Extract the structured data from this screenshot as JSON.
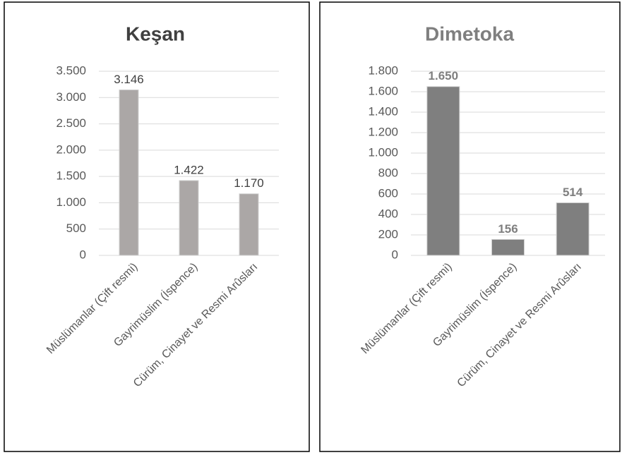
{
  "chart_data": [
    {
      "type": "bar",
      "title": "Keşan",
      "categories": [
        "Müslümanlar (Çift resmi)",
        "Gayrimüslim (İspence)",
        "Cürüm, Cinayet ve Resmi Arûsları"
      ],
      "values": [
        3146,
        1422,
        1170
      ],
      "value_labels": [
        "3.146",
        "1.422",
        "1.170"
      ],
      "color": "#aba7a6",
      "ylim": [
        0,
        3500
      ],
      "yticks": [
        0,
        500,
        {
          "value": 1000,
          "label": "1.000"
        },
        {
          "value": 1500,
          "label": "1.500"
        },
        {
          "value": 2000,
          "label": "2.000"
        },
        {
          "value": 2500,
          "label": "2.500"
        },
        {
          "value": 3000,
          "label": "3.000"
        },
        {
          "value": 3500,
          "label": "3.500"
        }
      ],
      "grid": true
    },
    {
      "type": "bar",
      "title": "Dimetoka",
      "categories": [
        "Müslümanlar (Çift resmi)",
        "Gayrimüslim (İspence)",
        "Cürüm, Cinayet ve Resmi Arûsları"
      ],
      "values": [
        1650,
        156,
        514
      ],
      "value_labels": [
        "1.650",
        "156",
        "514"
      ],
      "color": "#7f7f7f",
      "ylim": [
        0,
        1800
      ],
      "yticks": [
        0,
        200,
        400,
        600,
        800,
        {
          "value": 1000,
          "label": "1.000"
        },
        {
          "value": 1200,
          "label": "1.200"
        },
        {
          "value": 1400,
          "label": "1.400"
        },
        {
          "value": 1600,
          "label": "1.600"
        },
        {
          "value": 1800,
          "label": "1.800"
        }
      ],
      "grid": true
    }
  ]
}
